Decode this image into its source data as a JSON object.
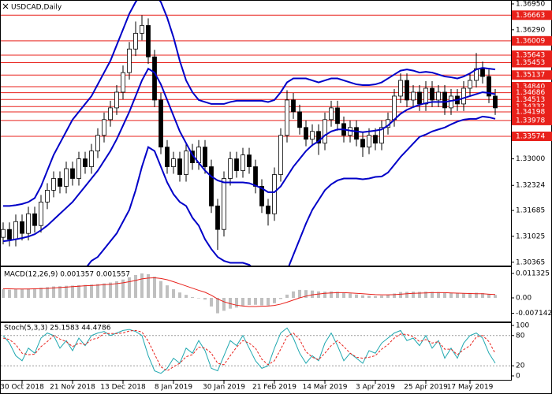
{
  "chart_data": [
    {
      "type": "candlestick",
      "title": "USDCAD,Daily",
      "categories": [
        null,
        null,
        null,
        "30 Oct 2018",
        null,
        null,
        null,
        null,
        null,
        null,
        null,
        "21 Nov 2018",
        null,
        null,
        null,
        null,
        null,
        null,
        null,
        "13 Dec 2018",
        null,
        null,
        null,
        null,
        null,
        null,
        null,
        "8 Jan 2019",
        null,
        null,
        null,
        null,
        null,
        null,
        null,
        "30 Jan 2019",
        null,
        null,
        null,
        null,
        null,
        null,
        null,
        "21 Feb 2019",
        null,
        null,
        null,
        null,
        null,
        null,
        null,
        "14 Mar 2019",
        null,
        null,
        null,
        null,
        null,
        null,
        null,
        "3 Apr 2019",
        null,
        null,
        null,
        null,
        null,
        null,
        null,
        "25 Apr 2019",
        null,
        null,
        null,
        null,
        null,
        null,
        "17 May 2019",
        null,
        null,
        null,
        null
      ],
      "open": [
        1.31,
        1.312,
        1.3095,
        1.314,
        1.311,
        1.316,
        1.313,
        1.319,
        1.322,
        1.325,
        1.323,
        1.3275,
        1.325,
        1.33,
        1.328,
        1.332,
        1.336,
        1.34,
        1.343,
        1.347,
        1.352,
        1.358,
        1.362,
        1.364,
        1.356,
        1.345,
        1.333,
        1.328,
        1.33,
        1.326,
        1.332,
        1.329,
        1.333,
        1.328,
        1.318,
        1.312,
        1.325,
        1.33,
        1.327,
        1.331,
        1.328,
        1.323,
        1.318,
        1.316,
        1.326,
        1.336,
        1.345,
        1.342,
        1.338,
        1.335,
        1.337,
        1.334,
        1.34,
        1.343,
        1.339,
        1.336,
        1.338,
        1.335,
        1.333,
        1.336,
        1.334,
        1.338,
        1.34,
        1.346,
        1.35,
        1.345,
        1.347,
        1.344,
        1.348,
        1.345,
        1.347,
        1.343,
        1.346,
        1.344,
        1.348,
        1.35,
        1.353,
        1.351,
        1.346
      ],
      "high": [
        1.3138,
        1.3138,
        1.3158,
        1.3158,
        1.3178,
        1.3178,
        1.3208,
        1.3238,
        1.3268,
        1.3268,
        1.3293,
        1.3293,
        1.3318,
        1.3318,
        1.3338,
        1.3378,
        1.3418,
        1.3448,
        1.3488,
        1.3538,
        1.3598,
        1.365,
        1.3666,
        1.3658,
        1.3578,
        1.3468,
        1.3348,
        1.3318,
        1.3318,
        1.3338,
        1.3338,
        1.3348,
        1.3348,
        1.3298,
        1.3198,
        1.3268,
        1.3318,
        1.3318,
        1.3328,
        1.3328,
        1.3298,
        1.3248,
        1.3198,
        1.3278,
        1.3378,
        1.3475,
        1.3468,
        1.3438,
        1.3398,
        1.3388,
        1.3388,
        1.3418,
        1.3448,
        1.3448,
        1.3408,
        1.3398,
        1.3398,
        1.3368,
        1.3378,
        1.3378,
        1.3398,
        1.3418,
        1.3478,
        1.3518,
        1.3518,
        1.3488,
        1.3488,
        1.3498,
        1.3498,
        1.3488,
        1.3488,
        1.3478,
        1.3478,
        1.3498,
        1.3518,
        1.357,
        1.3548,
        1.3528,
        1.3478
      ],
      "low": [
        1.3082,
        1.3077,
        1.3077,
        1.3092,
        1.3092,
        1.3112,
        1.3112,
        1.3172,
        1.3202,
        1.3212,
        1.3212,
        1.3232,
        1.3232,
        1.3262,
        1.3262,
        1.3302,
        1.3342,
        1.3382,
        1.3412,
        1.3452,
        1.3502,
        1.3562,
        1.3602,
        1.3542,
        1.3432,
        1.3312,
        1.3262,
        1.3262,
        1.3242,
        1.3242,
        1.3272,
        1.3272,
        1.3262,
        1.3162,
        1.3068,
        1.3102,
        1.3232,
        1.3252,
        1.3252,
        1.3262,
        1.3212,
        1.3162,
        1.313,
        1.3142,
        1.3242,
        1.3342,
        1.3402,
        1.3362,
        1.3332,
        1.3332,
        1.331,
        1.3322,
        1.3382,
        1.3372,
        1.3342,
        1.3342,
        1.3332,
        1.3305,
        1.3312,
        1.3322,
        1.3322,
        1.3362,
        1.3382,
        1.3442,
        1.3432,
        1.3432,
        1.3422,
        1.3422,
        1.3432,
        1.3432,
        1.3412,
        1.3412,
        1.3422,
        1.3422,
        1.3462,
        1.3482,
        1.3492,
        1.3442,
        1.3412
      ],
      "close": [
        1.312,
        1.3095,
        1.314,
        1.311,
        1.316,
        1.313,
        1.319,
        1.322,
        1.325,
        1.323,
        1.3275,
        1.325,
        1.33,
        1.328,
        1.332,
        1.336,
        1.34,
        1.343,
        1.347,
        1.352,
        1.358,
        1.362,
        1.364,
        1.356,
        1.345,
        1.333,
        1.328,
        1.33,
        1.326,
        1.332,
        1.329,
        1.333,
        1.328,
        1.318,
        1.312,
        1.325,
        1.33,
        1.327,
        1.331,
        1.328,
        1.323,
        1.318,
        1.316,
        1.326,
        1.336,
        1.345,
        1.342,
        1.338,
        1.335,
        1.337,
        1.334,
        1.34,
        1.343,
        1.339,
        1.336,
        1.338,
        1.335,
        1.333,
        1.336,
        1.334,
        1.338,
        1.34,
        1.346,
        1.35,
        1.345,
        1.347,
        1.344,
        1.348,
        1.345,
        1.347,
        1.343,
        1.346,
        1.344,
        1.348,
        1.35,
        1.353,
        1.351,
        1.346,
        1.343
      ],
      "up_color": "#ffffff",
      "down_color": "#000000",
      "bands": {
        "color": "#0000c8",
        "upper": [
          1.318,
          1.318,
          1.3182,
          1.3185,
          1.319,
          1.32,
          1.323,
          1.327,
          1.331,
          1.334,
          1.337,
          1.34,
          1.342,
          1.344,
          1.346,
          1.349,
          1.352,
          1.355,
          1.359,
          1.363,
          1.367,
          1.37,
          1.372,
          1.373,
          1.372,
          1.37,
          1.366,
          1.361,
          1.355,
          1.35,
          1.347,
          1.345,
          1.3445,
          1.344,
          1.344,
          1.344,
          1.3445,
          1.3448,
          1.3448,
          1.3448,
          1.3448,
          1.3448,
          1.3445,
          1.345,
          1.347,
          1.3495,
          1.3505,
          1.3505,
          1.3505,
          1.35,
          1.3495,
          1.35,
          1.3505,
          1.3505,
          1.35,
          1.3495,
          1.349,
          1.3488,
          1.3488,
          1.349,
          1.3495,
          1.3505,
          1.3515,
          1.3525,
          1.3528,
          1.3525,
          1.352,
          1.3522,
          1.352,
          1.3515,
          1.351,
          1.3508,
          1.3505,
          1.351,
          1.3518,
          1.3528,
          1.3532,
          1.353,
          1.3528
        ],
        "middle": [
          1.309,
          1.3092,
          1.3095,
          1.3098,
          1.3102,
          1.3108,
          1.3118,
          1.313,
          1.3145,
          1.316,
          1.3175,
          1.319,
          1.321,
          1.323,
          1.325,
          1.327,
          1.3295,
          1.332,
          1.335,
          1.3385,
          1.342,
          1.346,
          1.35,
          1.353,
          1.352,
          1.349,
          1.345,
          1.341,
          1.337,
          1.334,
          1.331,
          1.329,
          1.327,
          1.3255,
          1.3245,
          1.324,
          1.324,
          1.324,
          1.324,
          1.3238,
          1.3232,
          1.3225,
          1.3215,
          1.3215,
          1.323,
          1.3255,
          1.328,
          1.33,
          1.332,
          1.3335,
          1.3345,
          1.336,
          1.337,
          1.3375,
          1.3375,
          1.3372,
          1.337,
          1.3368,
          1.337,
          1.3372,
          1.3375,
          1.3385,
          1.34,
          1.3415,
          1.3425,
          1.3432,
          1.3438,
          1.3442,
          1.3445,
          1.3445,
          1.3445,
          1.3448,
          1.345,
          1.3455,
          1.346,
          1.3465,
          1.347,
          1.3468,
          1.3465
        ],
        "lower": [
          1.3,
          1.3004,
          1.3008,
          1.3011,
          1.3014,
          1.3016,
          1.3006,
          1.299,
          1.298,
          1.298,
          1.298,
          1.298,
          1.3,
          1.302,
          1.304,
          1.305,
          1.307,
          1.309,
          1.311,
          1.314,
          1.317,
          1.322,
          1.328,
          1.333,
          1.332,
          1.328,
          1.324,
          1.321,
          1.319,
          1.318,
          1.315,
          1.313,
          1.3095,
          1.307,
          1.305,
          1.304,
          1.3035,
          1.3035,
          1.3035,
          1.303,
          1.3016,
          1.3002,
          1.2985,
          1.298,
          1.299,
          1.3015,
          1.3055,
          1.3095,
          1.3135,
          1.317,
          1.3195,
          1.322,
          1.3235,
          1.3245,
          1.325,
          1.325,
          1.325,
          1.3248,
          1.325,
          1.3254,
          1.3255,
          1.3265,
          1.3285,
          1.3305,
          1.3322,
          1.3339,
          1.3356,
          1.3362,
          1.337,
          1.3375,
          1.338,
          1.3388,
          1.3395,
          1.34,
          1.3402,
          1.3402,
          1.3408,
          1.3406,
          1.3402
        ]
      },
      "levels": {
        "color": "#e8211b",
        "values": [
          1.36663,
          1.36009,
          1.35643,
          1.35453,
          1.35137,
          1.3484,
          1.34686,
          1.34513,
          1.34332,
          1.34198,
          1.33978,
          1.33574
        ],
        "value_labels": [
          "1.36663",
          "1.36009",
          "1.35643",
          "1.35453",
          "1.35137",
          "1.34840",
          "1.34686",
          "1.34513",
          "1.34332",
          "1.34198",
          "1.33978",
          "1.33574"
        ]
      },
      "ylim": [
        1.303,
        1.3705
      ],
      "yticks": [
        {
          "value": 1.3695,
          "label": "1.36950"
        },
        {
          "value": 1.3629,
          "label": "1.36290"
        },
        {
          "value": 1.33,
          "label": "1.33000"
        },
        {
          "value": 1.32324,
          "label": "1.32324"
        },
        {
          "value": 1.31685,
          "label": "1.31685"
        },
        {
          "value": 1.31025,
          "label": "1.31025"
        },
        {
          "value": 1.30365,
          "label": "1.30365"
        }
      ]
    },
    {
      "type": "macd",
      "title": "MACD(12,26,9) 0.001357 0.001557",
      "histogram_color": "#c0c0c0",
      "signal_color": "#e8211b",
      "histogram": [
        0.004,
        0.0038,
        0.004,
        0.0041,
        0.0043,
        0.0044,
        0.0047,
        0.005,
        0.0053,
        0.0054,
        0.0056,
        0.0057,
        0.0059,
        0.006,
        0.0062,
        0.0064,
        0.0067,
        0.0071,
        0.0077,
        0.0085,
        0.0095,
        0.0106,
        0.011325,
        0.011,
        0.0098,
        0.0078,
        0.0058,
        0.004,
        0.0025,
        0.0014,
        0.0004,
        -0.0002,
        -0.0008,
        -0.004,
        -0.007142,
        -0.006,
        -0.005,
        -0.0045,
        -0.0038,
        -0.0033,
        -0.0032,
        -0.0035,
        -0.0036,
        -0.0025,
        -0.0005,
        0.0015,
        0.003,
        0.0037,
        0.0036,
        0.0034,
        0.003,
        0.0029,
        0.003,
        0.0028,
        0.0024,
        0.002,
        0.0016,
        0.0012,
        0.001,
        0.0008,
        0.001,
        0.0014,
        0.002,
        0.0027,
        0.0028,
        0.0029,
        0.0028,
        0.0029,
        0.0028,
        0.0027,
        0.0025,
        0.0024,
        0.0022,
        0.0022,
        0.0023,
        0.0024,
        0.0022,
        0.0017,
        0.001357
      ],
      "signal": [
        0.0042,
        0.0042,
        0.0041,
        0.0041,
        0.0041,
        0.0042,
        0.0043,
        0.0044,
        0.0046,
        0.0048,
        0.005,
        0.0052,
        0.0054,
        0.0056,
        0.0057,
        0.0059,
        0.0061,
        0.0063,
        0.0066,
        0.007,
        0.0075,
        0.0081,
        0.0088,
        0.0092,
        0.0093,
        0.009,
        0.0084,
        0.0075,
        0.0065,
        0.0055,
        0.0045,
        0.0035,
        0.0026,
        0.0012,
        -0.0005,
        -0.0018,
        -0.0027,
        -0.0034,
        -0.0038,
        -0.004,
        -0.004,
        -0.0039,
        -0.0038,
        -0.0035,
        -0.0029,
        -0.002,
        -0.001,
        0.0,
        0.0008,
        0.0014,
        0.0018,
        0.0021,
        0.0023,
        0.0024,
        0.0024,
        0.0023,
        0.0021,
        0.0019,
        0.0017,
        0.0015,
        0.0014,
        0.0014,
        0.0015,
        0.0017,
        0.0019,
        0.0021,
        0.0022,
        0.0023,
        0.0024,
        0.0024,
        0.0024,
        0.0023,
        0.0022,
        0.0021,
        0.002,
        0.0019,
        0.0019,
        0.0017,
        0.001557
      ],
      "ylim": [
        -0.01096,
        0.01425
      ],
      "yticks": [
        0.011325,
        {
          "value": 0,
          "label": "0.00"
        },
        -0.007142
      ]
    },
    {
      "type": "stochastic",
      "title": "Stoch(5,3,3) 25.1583 44.4786",
      "main_color": "#20a8b0",
      "signal_color": "#e8211b",
      "main": [
        80,
        65,
        40,
        30,
        55,
        45,
        75,
        85,
        80,
        55,
        70,
        50,
        75,
        60,
        80,
        85,
        88,
        80,
        85,
        90,
        92,
        88,
        80,
        40,
        10,
        5,
        15,
        35,
        25,
        55,
        45,
        70,
        50,
        15,
        10,
        40,
        70,
        60,
        80,
        55,
        30,
        15,
        20,
        55,
        85,
        95,
        75,
        45,
        25,
        40,
        30,
        65,
        85,
        60,
        30,
        45,
        35,
        25,
        50,
        45,
        65,
        75,
        85,
        90,
        70,
        75,
        60,
        80,
        55,
        70,
        35,
        55,
        35,
        65,
        80,
        85,
        75,
        45,
        25.1583
      ],
      "signal": [
        75,
        72,
        62,
        45,
        42,
        43,
        58,
        68,
        80,
        73,
        68,
        58,
        65,
        62,
        72,
        75,
        84,
        84,
        84,
        85,
        89,
        90,
        87,
        69,
        43,
        18,
        10,
        18,
        25,
        38,
        42,
        57,
        55,
        45,
        25,
        22,
        40,
        57,
        70,
        65,
        55,
        33,
        22,
        30,
        53,
        78,
        85,
        72,
        48,
        37,
        32,
        45,
        60,
        70,
        58,
        45,
        37,
        35,
        37,
        40,
        53,
        62,
        75,
        83,
        82,
        78,
        68,
        72,
        65,
        68,
        53,
        53,
        42,
        52,
        60,
        77,
        80,
        68,
        44.4786
      ],
      "levels": [
        20,
        80
      ],
      "ylim": [
        0,
        100
      ],
      "yticks": [
        100,
        80,
        20,
        0
      ]
    }
  ]
}
